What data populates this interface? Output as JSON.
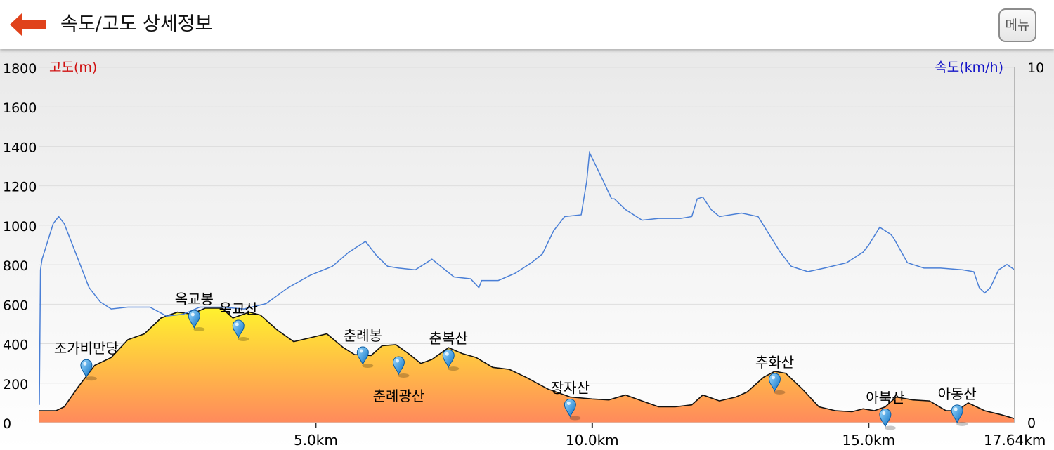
{
  "header": {
    "title": "속도/고도 상세정보",
    "back_icon": "back-arrow-icon",
    "menu_label": "메뉴"
  },
  "colors": {
    "back_arrow": "#e0421b",
    "elevation_fill_top": "#fff22e",
    "elevation_fill_bottom": "#ff8a5c",
    "speed_line": "#4a7fd6",
    "elevation_label": "#d01010",
    "speed_label": "#1515c8",
    "grid": "#dedede"
  },
  "chart_data": {
    "type": "area",
    "left_axis": {
      "label": "고도(m)",
      "ylim": [
        0,
        1800
      ],
      "ticks": [
        "0",
        "200",
        "400",
        "600",
        "800",
        "1000",
        "1200",
        "1400",
        "1600",
        "1800"
      ]
    },
    "right_axis": {
      "label": "속도(km/h)",
      "ylim": [
        0,
        10
      ],
      "ticks": [
        "0",
        "10"
      ]
    },
    "x_axis": {
      "unit": "km",
      "xlim": [
        0,
        17.64
      ],
      "ticks": [
        {
          "value": 5,
          "label": "5.0km"
        },
        {
          "value": 10,
          "label": "10.0km"
        },
        {
          "value": 15,
          "label": "15.0km"
        },
        {
          "value": 17.64,
          "label": "17.64km"
        }
      ]
    },
    "grid": true,
    "elevation": {
      "x": [
        0,
        0.3,
        0.45,
        0.7,
        1.0,
        1.3,
        1.6,
        1.9,
        2.2,
        2.5,
        2.75,
        3.0,
        3.3,
        3.5,
        3.8,
        4.0,
        4.3,
        4.6,
        4.9,
        5.2,
        5.5,
        5.7,
        6.0,
        6.2,
        6.45,
        6.7,
        6.9,
        7.1,
        7.4,
        7.65,
        7.9,
        8.2,
        8.5,
        8.8,
        9.2,
        9.6,
        10.0,
        10.3,
        10.6,
        10.9,
        11.2,
        11.5,
        11.8,
        12.0,
        12.3,
        12.6,
        12.8,
        13.1,
        13.3,
        13.5,
        13.8,
        14.1,
        14.4,
        14.7,
        14.9,
        15.1,
        15.3,
        15.5,
        15.8,
        16.1,
        16.4,
        16.6,
        16.8,
        17.1,
        17.4,
        17.64
      ],
      "y": [
        60,
        60,
        80,
        180,
        290,
        330,
        420,
        450,
        530,
        560,
        550,
        580,
        580,
        530,
        560,
        545,
        470,
        410,
        430,
        450,
        380,
        345,
        340,
        390,
        395,
        345,
        300,
        320,
        380,
        350,
        330,
        280,
        270,
        230,
        170,
        130,
        120,
        115,
        140,
        110,
        80,
        80,
        90,
        140,
        110,
        130,
        155,
        230,
        260,
        250,
        170,
        80,
        60,
        55,
        70,
        60,
        80,
        130,
        115,
        110,
        60,
        60,
        100,
        60,
        40,
        20
      ]
    },
    "speed": {
      "x": [
        0,
        0.02,
        0.05,
        0.15,
        0.25,
        0.35,
        0.45,
        0.7,
        0.9,
        1.1,
        1.3,
        1.6,
        2.0,
        2.3,
        2.6,
        2.9,
        3.3,
        3.7,
        4.1,
        4.5,
        4.9,
        5.3,
        5.6,
        5.9,
        6.1,
        6.3,
        6.5,
        6.8,
        7.1,
        7.5,
        7.8,
        7.95,
        8.0,
        8.3,
        8.6,
        8.9,
        9.1,
        9.3,
        9.5,
        9.8,
        9.9,
        9.95,
        10.2,
        10.35,
        10.4,
        10.6,
        10.9,
        11.2,
        11.6,
        11.8,
        11.9,
        12.0,
        12.15,
        12.3,
        12.7,
        13.0,
        13.2,
        13.4,
        13.6,
        13.9,
        14.2,
        14.6,
        14.9,
        15.0,
        15.2,
        15.4,
        15.45,
        15.7,
        16.0,
        16.3,
        16.7,
        16.9,
        17.0,
        17.1,
        17.2,
        17.35,
        17.5,
        17.64
      ],
      "y": [
        0.5,
        4.3,
        4.6,
        5.1,
        5.6,
        5.8,
        5.6,
        4.6,
        3.8,
        3.4,
        3.2,
        3.25,
        3.25,
        3.0,
        3.05,
        3.25,
        3.25,
        3.2,
        3.35,
        3.8,
        4.15,
        4.4,
        4.8,
        5.1,
        4.7,
        4.4,
        4.35,
        4.3,
        4.6,
        4.1,
        4.05,
        3.8,
        4.0,
        4.0,
        4.2,
        4.5,
        4.75,
        5.4,
        5.8,
        5.85,
        6.8,
        7.6,
        6.8,
        6.3,
        6.3,
        6.0,
        5.7,
        5.75,
        5.75,
        5.8,
        6.3,
        6.35,
        6.0,
        5.8,
        5.9,
        5.8,
        5.3,
        4.8,
        4.4,
        4.25,
        4.35,
        4.5,
        4.8,
        5.0,
        5.5,
        5.3,
        5.2,
        4.5,
        4.35,
        4.35,
        4.3,
        4.25,
        3.8,
        3.65,
        3.8,
        4.3,
        4.45,
        4.3
      ]
    },
    "waypoints": [
      {
        "name": "조가비만당",
        "x": 0.85,
        "y": 330
      },
      {
        "name": "옥교봉",
        "x": 2.8,
        "y": 580
      },
      {
        "name": "옥교산",
        "x": 3.6,
        "y": 530
      },
      {
        "name": "춘례봉",
        "x": 5.85,
        "y": 395
      },
      {
        "name": "춘례광산",
        "x": 6.5,
        "y": 345
      },
      {
        "name": "춘복산",
        "x": 7.4,
        "y": 380
      },
      {
        "name": "장자산",
        "x": 9.6,
        "y": 130
      },
      {
        "name": "추화산",
        "x": 13.3,
        "y": 260
      },
      {
        "name": "아북산",
        "x": 15.3,
        "y": 80
      },
      {
        "name": "아동산",
        "x": 16.6,
        "y": 100
      }
    ]
  }
}
